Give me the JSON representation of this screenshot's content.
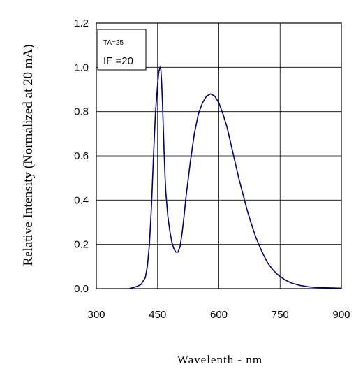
{
  "chart_data": {
    "type": "line",
    "title": "",
    "xlabel": "Wavelenth - nm",
    "ylabel": "Relative Intensity (Normalized at 20 mA)",
    "xlim": [
      300,
      900
    ],
    "ylim": [
      0,
      1.2
    ],
    "x_ticks": [
      "300",
      "450",
      "600",
      "750",
      "900"
    ],
    "y_ticks": [
      "0.0",
      "0.2",
      "0.4",
      "0.6",
      "0.8",
      "1.0",
      "1.2"
    ],
    "grid": true,
    "line_color": "#000080",
    "annotations": {
      "ta": "TA=25",
      "if": "IF =20"
    },
    "series": [
      {
        "x": [
          380,
          400,
          410,
          420,
          425,
          430,
          435,
          440,
          445,
          450,
          453,
          456,
          458,
          460,
          462,
          464,
          466,
          468,
          470,
          475,
          480,
          485,
          490,
          495,
          500,
          505,
          510,
          515,
          520,
          530,
          540,
          550,
          560,
          570,
          580,
          590,
          600,
          610,
          620,
          630,
          640,
          650,
          660,
          670,
          680,
          690,
          700,
          710,
          720,
          730,
          740,
          750,
          760,
          770,
          780,
          800,
          820,
          840,
          860,
          880,
          900
        ],
        "y": [
          0.0,
          0.01,
          0.02,
          0.05,
          0.1,
          0.2,
          0.37,
          0.6,
          0.8,
          0.92,
          0.98,
          1.0,
          0.99,
          0.93,
          0.84,
          0.73,
          0.62,
          0.52,
          0.44,
          0.33,
          0.26,
          0.21,
          0.18,
          0.165,
          0.165,
          0.19,
          0.25,
          0.33,
          0.42,
          0.57,
          0.7,
          0.79,
          0.84,
          0.87,
          0.88,
          0.87,
          0.84,
          0.79,
          0.73,
          0.65,
          0.57,
          0.49,
          0.42,
          0.35,
          0.29,
          0.235,
          0.19,
          0.15,
          0.115,
          0.09,
          0.07,
          0.055,
          0.042,
          0.032,
          0.024,
          0.014,
          0.008,
          0.005,
          0.004,
          0.003,
          0.002
        ]
      }
    ]
  }
}
